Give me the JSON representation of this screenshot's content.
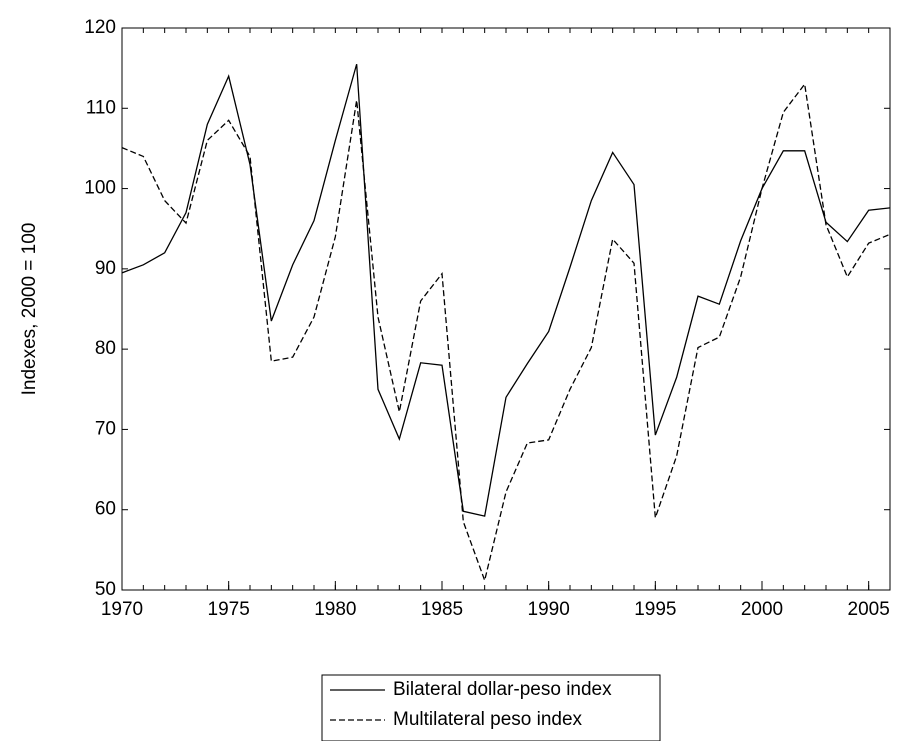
{
  "chart_data": {
    "type": "line",
    "y_label": "Indexes, 2000 = 100",
    "x": [
      1970,
      1971,
      1972,
      1973,
      1974,
      1975,
      1976,
      1977,
      1978,
      1979,
      1980,
      1981,
      1982,
      1983,
      1984,
      1985,
      1986,
      1987,
      1988,
      1989,
      1990,
      1991,
      1992,
      1993,
      1994,
      1995,
      1996,
      1997,
      1998,
      1999,
      2000,
      2001,
      2002,
      2003,
      2004,
      2005,
      2006
    ],
    "series": [
      {
        "name": "Bilateral dollar-peso index",
        "color": "#000000",
        "dash": "solid",
        "values": [
          89.5,
          90.5,
          92,
          97,
          108,
          114,
          103,
          83.5,
          90.5,
          96,
          106,
          115.5,
          75,
          68.8,
          78.3,
          78,
          59.8,
          59.2,
          74,
          78.2,
          82.2,
          90.2,
          98.5,
          104.5,
          100.5,
          69.3,
          76.5,
          86.6,
          85.6,
          93.5,
          100,
          104.7,
          104.7,
          95.8,
          93.4,
          97.3,
          97.6
        ]
      },
      {
        "name": "Multilateral peso index",
        "color": "#000000",
        "dash": "dashed",
        "values": [
          105.1,
          104,
          98.5,
          95.7,
          106,
          108.5,
          104,
          78.5,
          79,
          84,
          94,
          111,
          84,
          72.2,
          86,
          89.4,
          58.5,
          51.2,
          62.2,
          68.3,
          68.7,
          75,
          80.2,
          93.7,
          90.7,
          59,
          66.7,
          80.2,
          81.5,
          89,
          100,
          109.5,
          113,
          95.5,
          89,
          93.2,
          94.3
        ]
      }
    ],
    "xlim": [
      1970,
      2006
    ],
    "xticks": [
      1970,
      1975,
      1980,
      1985,
      1990,
      1995,
      2000,
      2005
    ],
    "ylim": [
      50,
      120
    ],
    "yticks": [
      50,
      60,
      70,
      80,
      90,
      100,
      110,
      120
    ]
  }
}
